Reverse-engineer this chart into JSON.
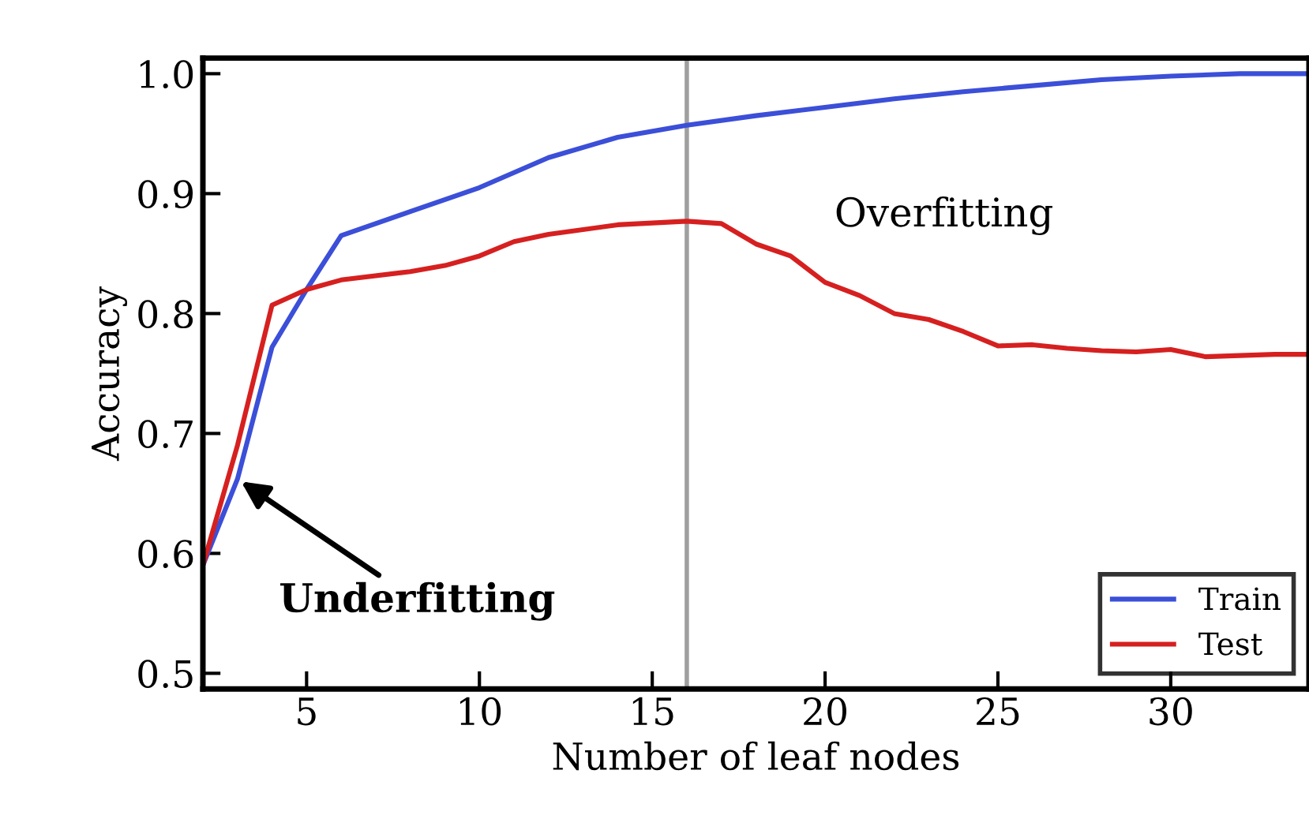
{
  "chart_data": {
    "type": "line",
    "xlabel": "Number of leaf nodes",
    "ylabel": "Accuracy",
    "xlim": [
      2,
      34
    ],
    "ylim": [
      0.487,
      1.013
    ],
    "xticks": [
      5,
      10,
      15,
      20,
      25,
      30
    ],
    "yticks": [
      {
        "value": 0.5,
        "label": "0.5"
      },
      {
        "value": 0.6,
        "label": "0.6"
      },
      {
        "value": 0.7,
        "label": "0.7"
      },
      {
        "value": 0.8,
        "label": "0.8"
      },
      {
        "value": 0.9,
        "label": "0.9"
      },
      {
        "value": 1,
        "label": "1.0"
      }
    ],
    "grid": false,
    "legend": "bottom right",
    "marker": "none",
    "line_style": "solid",
    "series": [
      {
        "name": "Train",
        "color": "#3b4fd8",
        "x": [
          2,
          3,
          4,
          5,
          6,
          8,
          10,
          12,
          14,
          16,
          18,
          20,
          22,
          24,
          26,
          28,
          30,
          32,
          34
        ],
        "values": [
          0.59,
          0.662,
          0.772,
          0.82,
          0.865,
          0.885,
          0.905,
          0.93,
          0.947,
          0.957,
          0.965,
          0.972,
          0.979,
          0.985,
          0.99,
          0.995,
          0.998,
          1.0,
          1.0
        ]
      },
      {
        "name": "Test",
        "color": "#d62020",
        "x": [
          2,
          3,
          4,
          5,
          6,
          8,
          9,
          10,
          11,
          12,
          14,
          16,
          17,
          18,
          19,
          20,
          21,
          22,
          23,
          24,
          25,
          26,
          27,
          28,
          29,
          30,
          31,
          32,
          33,
          34
        ],
        "values": [
          0.59,
          0.69,
          0.807,
          0.82,
          0.828,
          0.835,
          0.84,
          0.848,
          0.86,
          0.866,
          0.874,
          0.877,
          0.875,
          0.858,
          0.848,
          0.826,
          0.815,
          0.8,
          0.795,
          0.785,
          0.773,
          0.774,
          0.771,
          0.769,
          0.768,
          0.77,
          0.764,
          0.765,
          0.766,
          0.766
        ]
      }
    ],
    "ref_lines": [
      {
        "axis": "x",
        "value": 16,
        "color": "#a0a0a0"
      }
    ],
    "annotations": [
      {
        "text": "Underfitting",
        "x": 3,
        "y": 0.662
      },
      "Overfitting"
    ]
  }
}
